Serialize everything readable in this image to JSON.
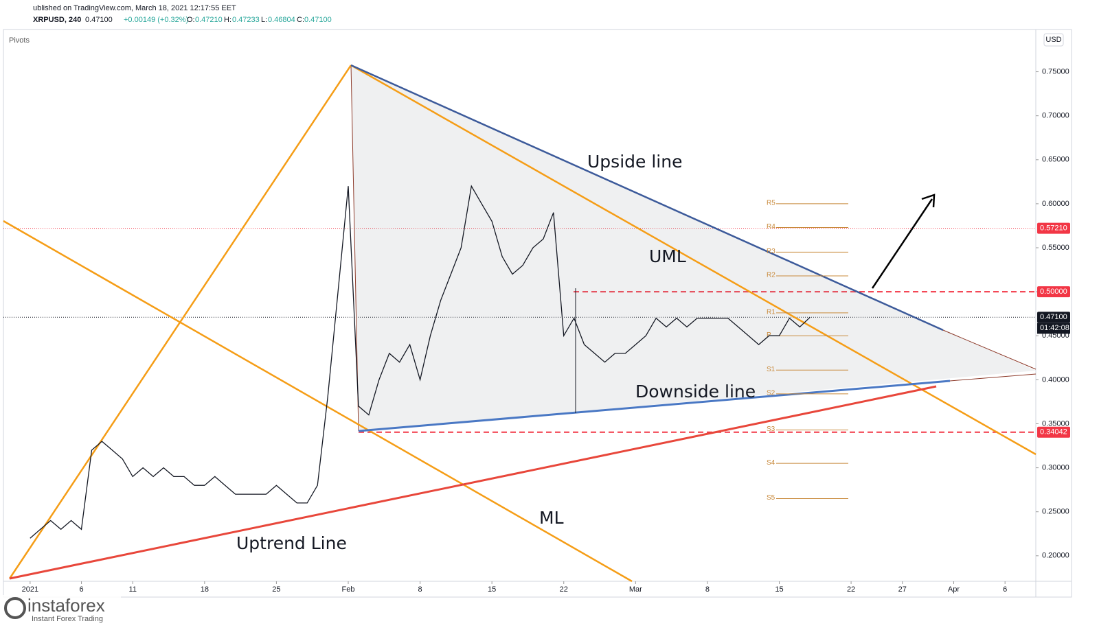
{
  "header": {
    "published": "ublished on TradingView.com, March 18, 2021 12:17:55 EET",
    "symbol": "XRPUSD, 240",
    "last": "0.47100",
    "change": "+0.00149 (+0.32%)",
    "open_label": "O:",
    "open": "0.47210",
    "high_label": "H:",
    "high": "0.47233",
    "low_label": "L:",
    "low": "0.46804",
    "close_label": "C:",
    "close": "0.47100"
  },
  "indicator": "Pivots",
  "currency": "USD",
  "countdown": "01:42:08",
  "logo": {
    "name": "instaforex",
    "tagline": "Instant Forex Trading"
  },
  "annotations": [
    "Upside line",
    "UML",
    "Downside line",
    "ML",
    "Uptrend Line"
  ],
  "chart_data": {
    "type": "line",
    "color": "#131722",
    "x": [
      0,
      1,
      2,
      3,
      4,
      5,
      6,
      7,
      8,
      9,
      10,
      11,
      12,
      13,
      14,
      15,
      16,
      17,
      18,
      19,
      20,
      21,
      22,
      23,
      24,
      25,
      26,
      27,
      28,
      29,
      30,
      31,
      32,
      33,
      34,
      35,
      36,
      37,
      38,
      39,
      40,
      41,
      42,
      43,
      44,
      45,
      46,
      47,
      48,
      49,
      50,
      51,
      52,
      53,
      54,
      55,
      56,
      57,
      58,
      59,
      60,
      61,
      62,
      63,
      64,
      65,
      66,
      67,
      68,
      69,
      70,
      71,
      72,
      73,
      74,
      75,
      76
    ],
    "values": [
      0.22,
      0.23,
      0.24,
      0.23,
      0.24,
      0.23,
      0.32,
      0.33,
      0.32,
      0.31,
      0.29,
      0.3,
      0.29,
      0.3,
      0.29,
      0.29,
      0.28,
      0.28,
      0.29,
      0.28,
      0.27,
      0.27,
      0.27,
      0.27,
      0.28,
      0.27,
      0.26,
      0.26,
      0.28,
      0.38,
      0.5,
      0.62,
      0.37,
      0.36,
      0.4,
      0.43,
      0.42,
      0.44,
      0.4,
      0.45,
      0.49,
      0.52,
      0.55,
      0.62,
      0.6,
      0.58,
      0.54,
      0.52,
      0.53,
      0.55,
      0.56,
      0.59,
      0.45,
      0.47,
      0.44,
      0.43,
      0.42,
      0.43,
      0.43,
      0.44,
      0.45,
      0.47,
      0.46,
      0.47,
      0.46,
      0.47,
      0.47,
      0.47,
      0.47,
      0.46,
      0.45,
      0.44,
      0.45,
      0.45,
      0.47,
      0.46,
      0.471
    ],
    "xlim": [
      -2.6,
      98
    ],
    "xticks": [
      {
        "value": 0,
        "label": "2021"
      },
      {
        "value": 5,
        "label": "6"
      },
      {
        "value": 10,
        "label": "11"
      },
      {
        "value": 17,
        "label": "18"
      },
      {
        "value": 24,
        "label": "25"
      },
      {
        "value": 31,
        "label": "Feb"
      },
      {
        "value": 38,
        "label": "8"
      },
      {
        "value": 45,
        "label": "15"
      },
      {
        "value": 52,
        "label": "22"
      },
      {
        "value": 59,
        "label": "Mar"
      },
      {
        "value": 66,
        "label": "8"
      },
      {
        "value": 73,
        "label": "15"
      },
      {
        "value": 80,
        "label": "22"
      },
      {
        "value": 85,
        "label": "27"
      },
      {
        "value": 90,
        "label": "Apr"
      },
      {
        "value": 95,
        "label": "6"
      }
    ],
    "ylim": [
      0.171,
      0.798
    ],
    "yticks": [
      {
        "value": 0.2,
        "label": "0.20000"
      },
      {
        "value": 0.25,
        "label": "0.25000"
      },
      {
        "value": 0.3,
        "label": "0.30000"
      },
      {
        "value": 0.35,
        "label": "0.35000"
      },
      {
        "value": 0.4,
        "label": "0.40000"
      },
      {
        "value": 0.45,
        "label": "0.45000"
      },
      {
        "value": 0.5,
        "label": "0.50000"
      },
      {
        "value": 0.55,
        "label": "0.55000"
      },
      {
        "value": 0.6,
        "label": "0.60000"
      },
      {
        "value": 0.65,
        "label": "0.65000"
      },
      {
        "value": 0.7,
        "label": "0.70000"
      },
      {
        "value": 0.75,
        "label": "0.75000"
      }
    ],
    "price_levels": [
      {
        "value": 0.5721,
        "label": "0.57210",
        "color": "#f23645"
      },
      {
        "value": 0.5,
        "label": "0.50000",
        "color": "#f23645"
      },
      {
        "value": 0.471,
        "label": "0.47100",
        "color": "#131722"
      },
      {
        "value": 0.34042,
        "label": "0.34042",
        "color": "#f23645"
      }
    ],
    "pivots": [
      {
        "name": "R5",
        "value": 0.6
      },
      {
        "name": "R4",
        "value": 0.573
      },
      {
        "name": "R3",
        "value": 0.545
      },
      {
        "name": "R2",
        "value": 0.518
      },
      {
        "name": "R1",
        "value": 0.476
      },
      {
        "name": "P",
        "value": 0.45
      },
      {
        "name": "S1",
        "value": 0.411
      },
      {
        "name": "S2",
        "value": 0.384
      },
      {
        "name": "S3",
        "value": 0.343
      },
      {
        "name": "S4",
        "value": 0.305
      },
      {
        "name": "S5",
        "value": 0.265
      }
    ]
  }
}
